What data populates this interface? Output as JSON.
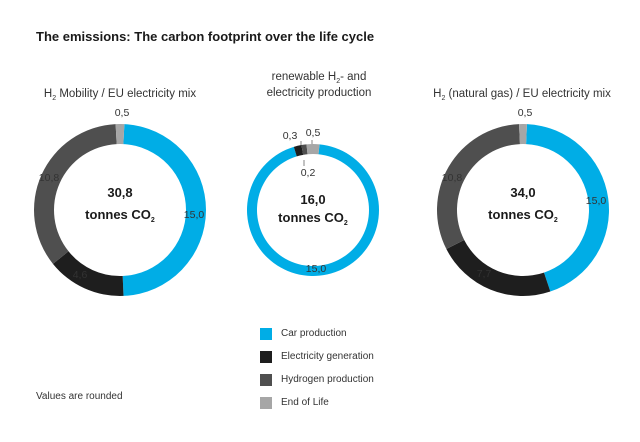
{
  "page": {
    "title": "The emissions: The carbon footprint over the life cycle",
    "footnote": "Values are rounded"
  },
  "legend": [
    {
      "name": "Car production",
      "color": "#00ade6"
    },
    {
      "name": "Electricity generation",
      "color": "#1e1e1e"
    },
    {
      "name": "Hydrogen production",
      "color": "#4f4f4f"
    },
    {
      "name": "End of Life",
      "color": "#a6a6a6"
    }
  ],
  "chart_data": [
    {
      "type": "pie",
      "title_lines": [
        {
          "pre": "H",
          "sub": "2",
          "post": " Mobility / EU electricity mix"
        }
      ],
      "center_value": "30,8",
      "center_unit": "tonnes CO",
      "center_unit_sub": "2",
      "slices": [
        {
          "name": "Car production",
          "value": 15.0,
          "label": "15,0"
        },
        {
          "name": "Electricity generation",
          "value": 4.6,
          "label": "4,6"
        },
        {
          "name": "Hydrogen production",
          "value": 10.8,
          "label": "10,8"
        },
        {
          "name": "End of Life",
          "value": 0.5,
          "label": "0,5"
        }
      ]
    },
    {
      "type": "pie",
      "title_lines": [
        {
          "pre": "renewable H",
          "sub": "2",
          "post": "- and"
        },
        {
          "pre": "electricity production",
          "sub": "",
          "post": ""
        }
      ],
      "center_value": "16,0",
      "center_unit": "tonnes CO",
      "center_unit_sub": "2",
      "slices": [
        {
          "name": "Car production",
          "value": 15.0,
          "label": "15,0"
        },
        {
          "name": "Electricity generation",
          "value": 0.3,
          "label": "0,3"
        },
        {
          "name": "Hydrogen production",
          "value": 0.2,
          "label": "0,2"
        },
        {
          "name": "End of Life",
          "value": 0.5,
          "label": "0,5"
        }
      ]
    },
    {
      "type": "pie",
      "title_lines": [
        {
          "pre": "H",
          "sub": "2",
          "post": " (natural gas) / EU electricity mix"
        }
      ],
      "center_value": "34,0",
      "center_unit": "tonnes CO",
      "center_unit_sub": "2",
      "slices": [
        {
          "name": "Car production",
          "value": 15.0,
          "label": "15,0"
        },
        {
          "name": "Electricity generation",
          "value": 7.7,
          "label": "7,7"
        },
        {
          "name": "Hydrogen production",
          "value": 10.8,
          "label": "10,8"
        },
        {
          "name": "End of Life",
          "value": 0.5,
          "label": "0,5"
        }
      ]
    }
  ]
}
